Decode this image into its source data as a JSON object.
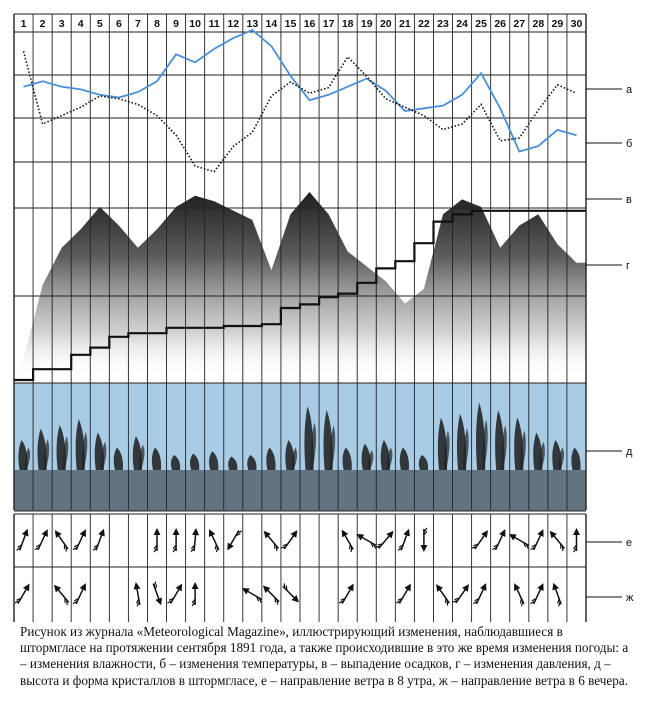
{
  "caption": "Рисунок из журнала «Meteorological Magazine», иллюстрирующий изменения, наблюдавшиеся в штормгласе на протяжении сентября 1891 года, а также происходившие в это же время изменения погоды: а – изменения влажности, б – изменения температуры, в – выпадение осадков, г – изменения давления, д – высота и форма кристаллов в штормгласе, е – направление ветра в 8 утра, ж – направление ветра в 6 вечера.",
  "colors": {
    "humidity": "#4a90d9",
    "grid": "#222222",
    "crystal_band": "#a9cce6",
    "precip_fill": "#3a3a3a",
    "background": "#ffffff"
  },
  "chart_data": {
    "type": "line",
    "title": "",
    "x": [
      1,
      2,
      3,
      4,
      5,
      6,
      7,
      8,
      9,
      10,
      11,
      12,
      13,
      14,
      15,
      16,
      17,
      18,
      19,
      20,
      21,
      22,
      23,
      24,
      25,
      26,
      27,
      28,
      29,
      30
    ],
    "day_labels": [
      "1",
      "2",
      "3",
      "4",
      "5",
      "6",
      "7",
      "8",
      "9",
      "10",
      "11",
      "12",
      "13",
      "14",
      "15",
      "16",
      "17",
      "18",
      "19",
      "20",
      "21",
      "22",
      "23",
      "24",
      "25",
      "26",
      "27",
      "28",
      "29",
      "30"
    ],
    "row_labels": [
      "а",
      "б",
      "в",
      "г",
      "д",
      "е",
      "ж"
    ],
    "series": [
      {
        "label": "а",
        "kind": "line",
        "values": [
          0.58,
          0.62,
          0.58,
          0.56,
          0.52,
          0.5,
          0.54,
          0.62,
          0.82,
          0.76,
          0.86,
          0.94,
          1.0,
          0.88,
          0.66,
          0.48,
          0.52,
          0.58,
          0.64,
          0.55,
          0.4,
          0.42,
          0.44,
          0.52,
          0.68,
          0.42,
          0.1,
          0.14,
          0.26,
          0.22
        ]
      },
      {
        "label": "б",
        "kind": "dotted-line",
        "values": [
          0.92,
          0.4,
          0.46,
          0.52,
          0.6,
          0.58,
          0.54,
          0.46,
          0.32,
          0.1,
          0.06,
          0.24,
          0.34,
          0.6,
          0.7,
          0.62,
          0.66,
          0.88,
          0.74,
          0.58,
          0.52,
          0.46,
          0.36,
          0.4,
          0.54,
          0.28,
          0.3,
          0.5,
          0.68,
          0.62
        ]
      },
      {
        "label": "в",
        "kind": "area",
        "values": [
          0.1,
          0.5,
          0.7,
          0.8,
          0.92,
          0.82,
          0.7,
          0.8,
          0.92,
          0.98,
          0.95,
          0.9,
          0.85,
          0.58,
          0.88,
          1.0,
          0.88,
          0.68,
          0.6,
          0.52,
          0.4,
          0.48,
          0.88,
          0.96,
          0.92,
          0.7,
          0.82,
          0.88,
          0.72,
          0.62
        ]
      },
      {
        "label": "г",
        "kind": "step",
        "values": [
          0.0,
          0.06,
          0.06,
          0.14,
          0.18,
          0.24,
          0.26,
          0.26,
          0.29,
          0.29,
          0.29,
          0.3,
          0.3,
          0.31,
          0.4,
          0.42,
          0.46,
          0.48,
          0.54,
          0.62,
          0.66,
          0.76,
          0.88,
          0.92,
          0.94,
          0.94,
          0.94,
          0.94,
          0.94,
          0.94
        ]
      },
      {
        "label": "д",
        "kind": "crystal-height",
        "values": [
          0.4,
          0.55,
          0.6,
          0.68,
          0.5,
          0.3,
          0.45,
          0.3,
          0.2,
          0.22,
          0.25,
          0.18,
          0.2,
          0.3,
          0.4,
          0.85,
          0.8,
          0.3,
          0.35,
          0.4,
          0.3,
          0.2,
          0.7,
          0.75,
          0.9,
          0.8,
          0.7,
          0.5,
          0.4,
          0.3
        ]
      }
    ],
    "wind_8am_deg": [
      20,
      25,
      -35,
      25,
      20,
      null,
      null,
      0,
      0,
      5,
      -25,
      -150,
      null,
      -40,
      35,
      null,
      null,
      -30,
      -60,
      40,
      20,
      180,
      null,
      null,
      35,
      25,
      -60,
      25,
      -40,
      0
    ],
    "wind_6pm_deg": [
      30,
      null,
      -40,
      25,
      null,
      null,
      -10,
      160,
      30,
      0,
      null,
      null,
      -60,
      -45,
      135,
      null,
      null,
      30,
      null,
      null,
      30,
      null,
      -35,
      35,
      25,
      null,
      -25,
      25,
      -20,
      null
    ],
    "grid": true
  }
}
